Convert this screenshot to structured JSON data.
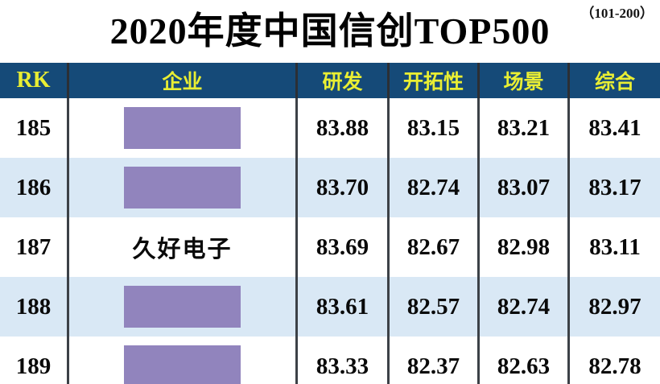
{
  "header": {
    "title": "2020年度中国信创TOP500",
    "range_note": "（101-200）"
  },
  "table": {
    "columns": [
      {
        "label": "RK"
      },
      {
        "label": "企业"
      },
      {
        "label": "研发"
      },
      {
        "label": "开拓性"
      },
      {
        "label": "场景"
      },
      {
        "label": "综合"
      }
    ],
    "rows": [
      {
        "rk": "185",
        "company": "",
        "company_redacted": true,
        "scores": [
          "83.88",
          "83.15",
          "83.21",
          "83.41"
        ]
      },
      {
        "rk": "186",
        "company": "",
        "company_redacted": true,
        "scores": [
          "83.70",
          "82.74",
          "83.07",
          "83.17"
        ]
      },
      {
        "rk": "187",
        "company": "久好电子",
        "company_redacted": false,
        "scores": [
          "83.69",
          "82.67",
          "82.98",
          "83.11"
        ]
      },
      {
        "rk": "188",
        "company": "",
        "company_redacted": true,
        "scores": [
          "83.61",
          "82.57",
          "82.74",
          "82.97"
        ]
      },
      {
        "rk": "189",
        "company": "",
        "company_redacted": true,
        "scores": [
          "83.33",
          "82.37",
          "82.63",
          "82.78"
        ]
      }
    ]
  },
  "colors": {
    "header_bg": "#154a78",
    "header_text": "#e9ee33",
    "row_bg": "#ffffff",
    "row_alt_bg": "#d9e8f5",
    "redaction_box": "#9184bd",
    "column_border": "#3c4147",
    "title_text": "#000000"
  },
  "chart_data": {
    "type": "table",
    "title": "2020年度中国信创TOP500",
    "subtitle": "（101-200）",
    "columns": [
      "RK",
      "企业",
      "研发",
      "开拓性",
      "场景",
      "综合"
    ],
    "rows": [
      [
        "185",
        "",
        "83.88",
        "83.15",
        "83.21",
        "83.41"
      ],
      [
        "186",
        "",
        "83.70",
        "82.74",
        "83.07",
        "83.17"
      ],
      [
        "187",
        "久好电子",
        "83.69",
        "82.67",
        "82.98",
        "83.11"
      ],
      [
        "188",
        "",
        "83.61",
        "82.57",
        "82.74",
        "82.97"
      ],
      [
        "189",
        "",
        "83.33",
        "82.37",
        "82.63",
        "82.78"
      ]
    ],
    "notes": "Company names in rows 185, 186, 188, 189 are covered by purple redaction boxes"
  }
}
